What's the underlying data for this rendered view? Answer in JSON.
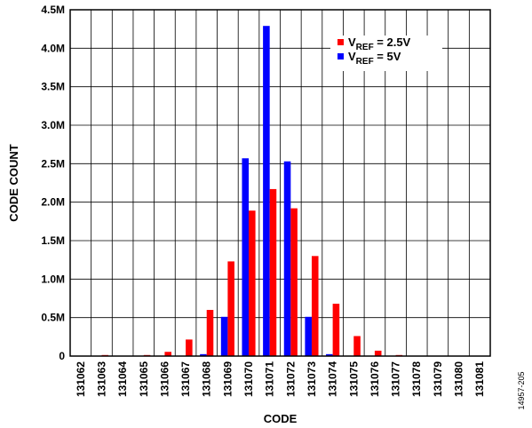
{
  "chart_data": {
    "type": "bar",
    "title": "",
    "xlabel": "CODE",
    "ylabel": "CODE COUNT",
    "ylim": [
      0,
      4500000
    ],
    "yticks": [
      0,
      500000,
      1000000,
      1500000,
      2000000,
      2500000,
      3000000,
      3500000,
      4000000,
      4500000
    ],
    "ytick_labels": [
      "0",
      "0.5M",
      "1.0M",
      "1.5M",
      "2.0M",
      "2.5M",
      "3.0M",
      "3.5M",
      "4.0M",
      "4.5M"
    ],
    "grid": true,
    "legend_position": "top-right",
    "categories": [
      "131062",
      "131063",
      "131064",
      "131065",
      "131066",
      "131067",
      "131068",
      "131069",
      "131070",
      "131071",
      "131072",
      "131073",
      "131074",
      "131075",
      "131076",
      "131077",
      "131078",
      "131079",
      "131080",
      "131081"
    ],
    "series": [
      {
        "name_main": "V",
        "name_sub": "REF",
        "name_rest": " = 2.5V",
        "color": "#ff0000",
        "values": [
          0,
          3000,
          0,
          10000,
          55000,
          215000,
          600000,
          1230000,
          1890000,
          2170000,
          1920000,
          1300000,
          680000,
          260000,
          70000,
          10000,
          0,
          0,
          0,
          0
        ]
      },
      {
        "name_main": "V",
        "name_sub": "REF",
        "name_rest": " = 5V",
        "color": "#0000ff",
        "values": [
          0,
          0,
          0,
          0,
          0,
          0,
          25000,
          510000,
          2570000,
          4290000,
          2530000,
          510000,
          25000,
          0,
          0,
          0,
          0,
          0,
          0,
          0
        ]
      }
    ]
  },
  "figure_id": "14957-205"
}
